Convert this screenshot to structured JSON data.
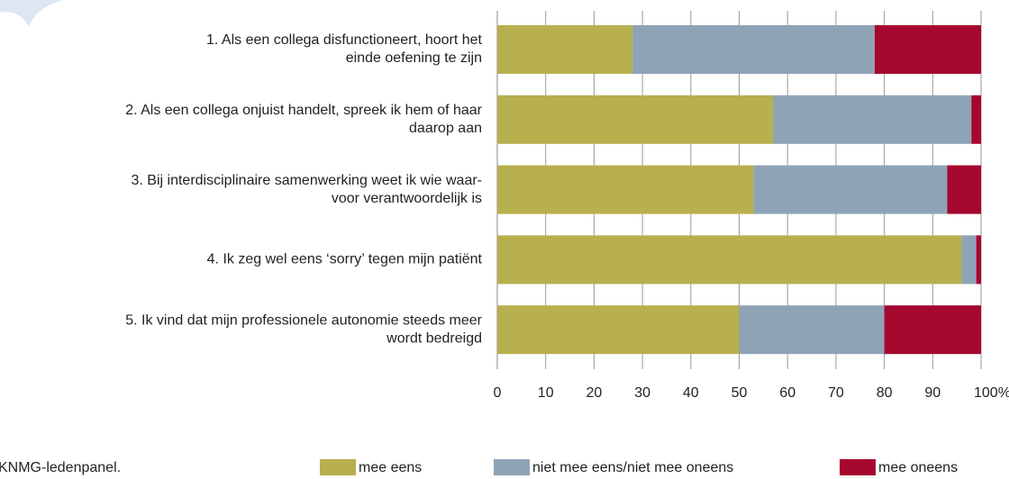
{
  "chart_data": {
    "type": "stacked_bar_horizontal",
    "categories": [
      [
        "1. Als een collega disfunctioneert, hoort het",
        "einde oefening te zijn"
      ],
      [
        "2. Als een collega onjuist handelt, spreek ik hem of haar",
        "daarop aan"
      ],
      [
        "3. Bij interdisciplinaire samenwerking weet ik wie waar-",
        "voor verantwoordelijk is"
      ],
      [
        "4. Ik zeg wel eens ‘sorry’ tegen mijn patiënt"
      ],
      [
        "5. Ik vind dat mijn professionele autonomie steeds meer",
        "wordt bedreigd"
      ]
    ],
    "series": [
      {
        "name": "mee eens",
        "color": "#b8af4f",
        "values": [
          28,
          57,
          53,
          96,
          50
        ]
      },
      {
        "name": "niet mee eens/niet mee oneens",
        "color": "#8fa3b7",
        "values": [
          50,
          41,
          40,
          3,
          30
        ]
      },
      {
        "name": "mee oneens",
        "color": "#a6072f",
        "values": [
          22,
          2,
          7,
          1,
          20
        ]
      }
    ],
    "xlim": [
      0,
      100
    ],
    "xticks": [
      0,
      10,
      20,
      30,
      40,
      50,
      60,
      70,
      80,
      90,
      {
        "value": 100,
        "label": "100%"
      }
    ],
    "grid": true,
    "source": "KNMG-ledenpanel."
  }
}
